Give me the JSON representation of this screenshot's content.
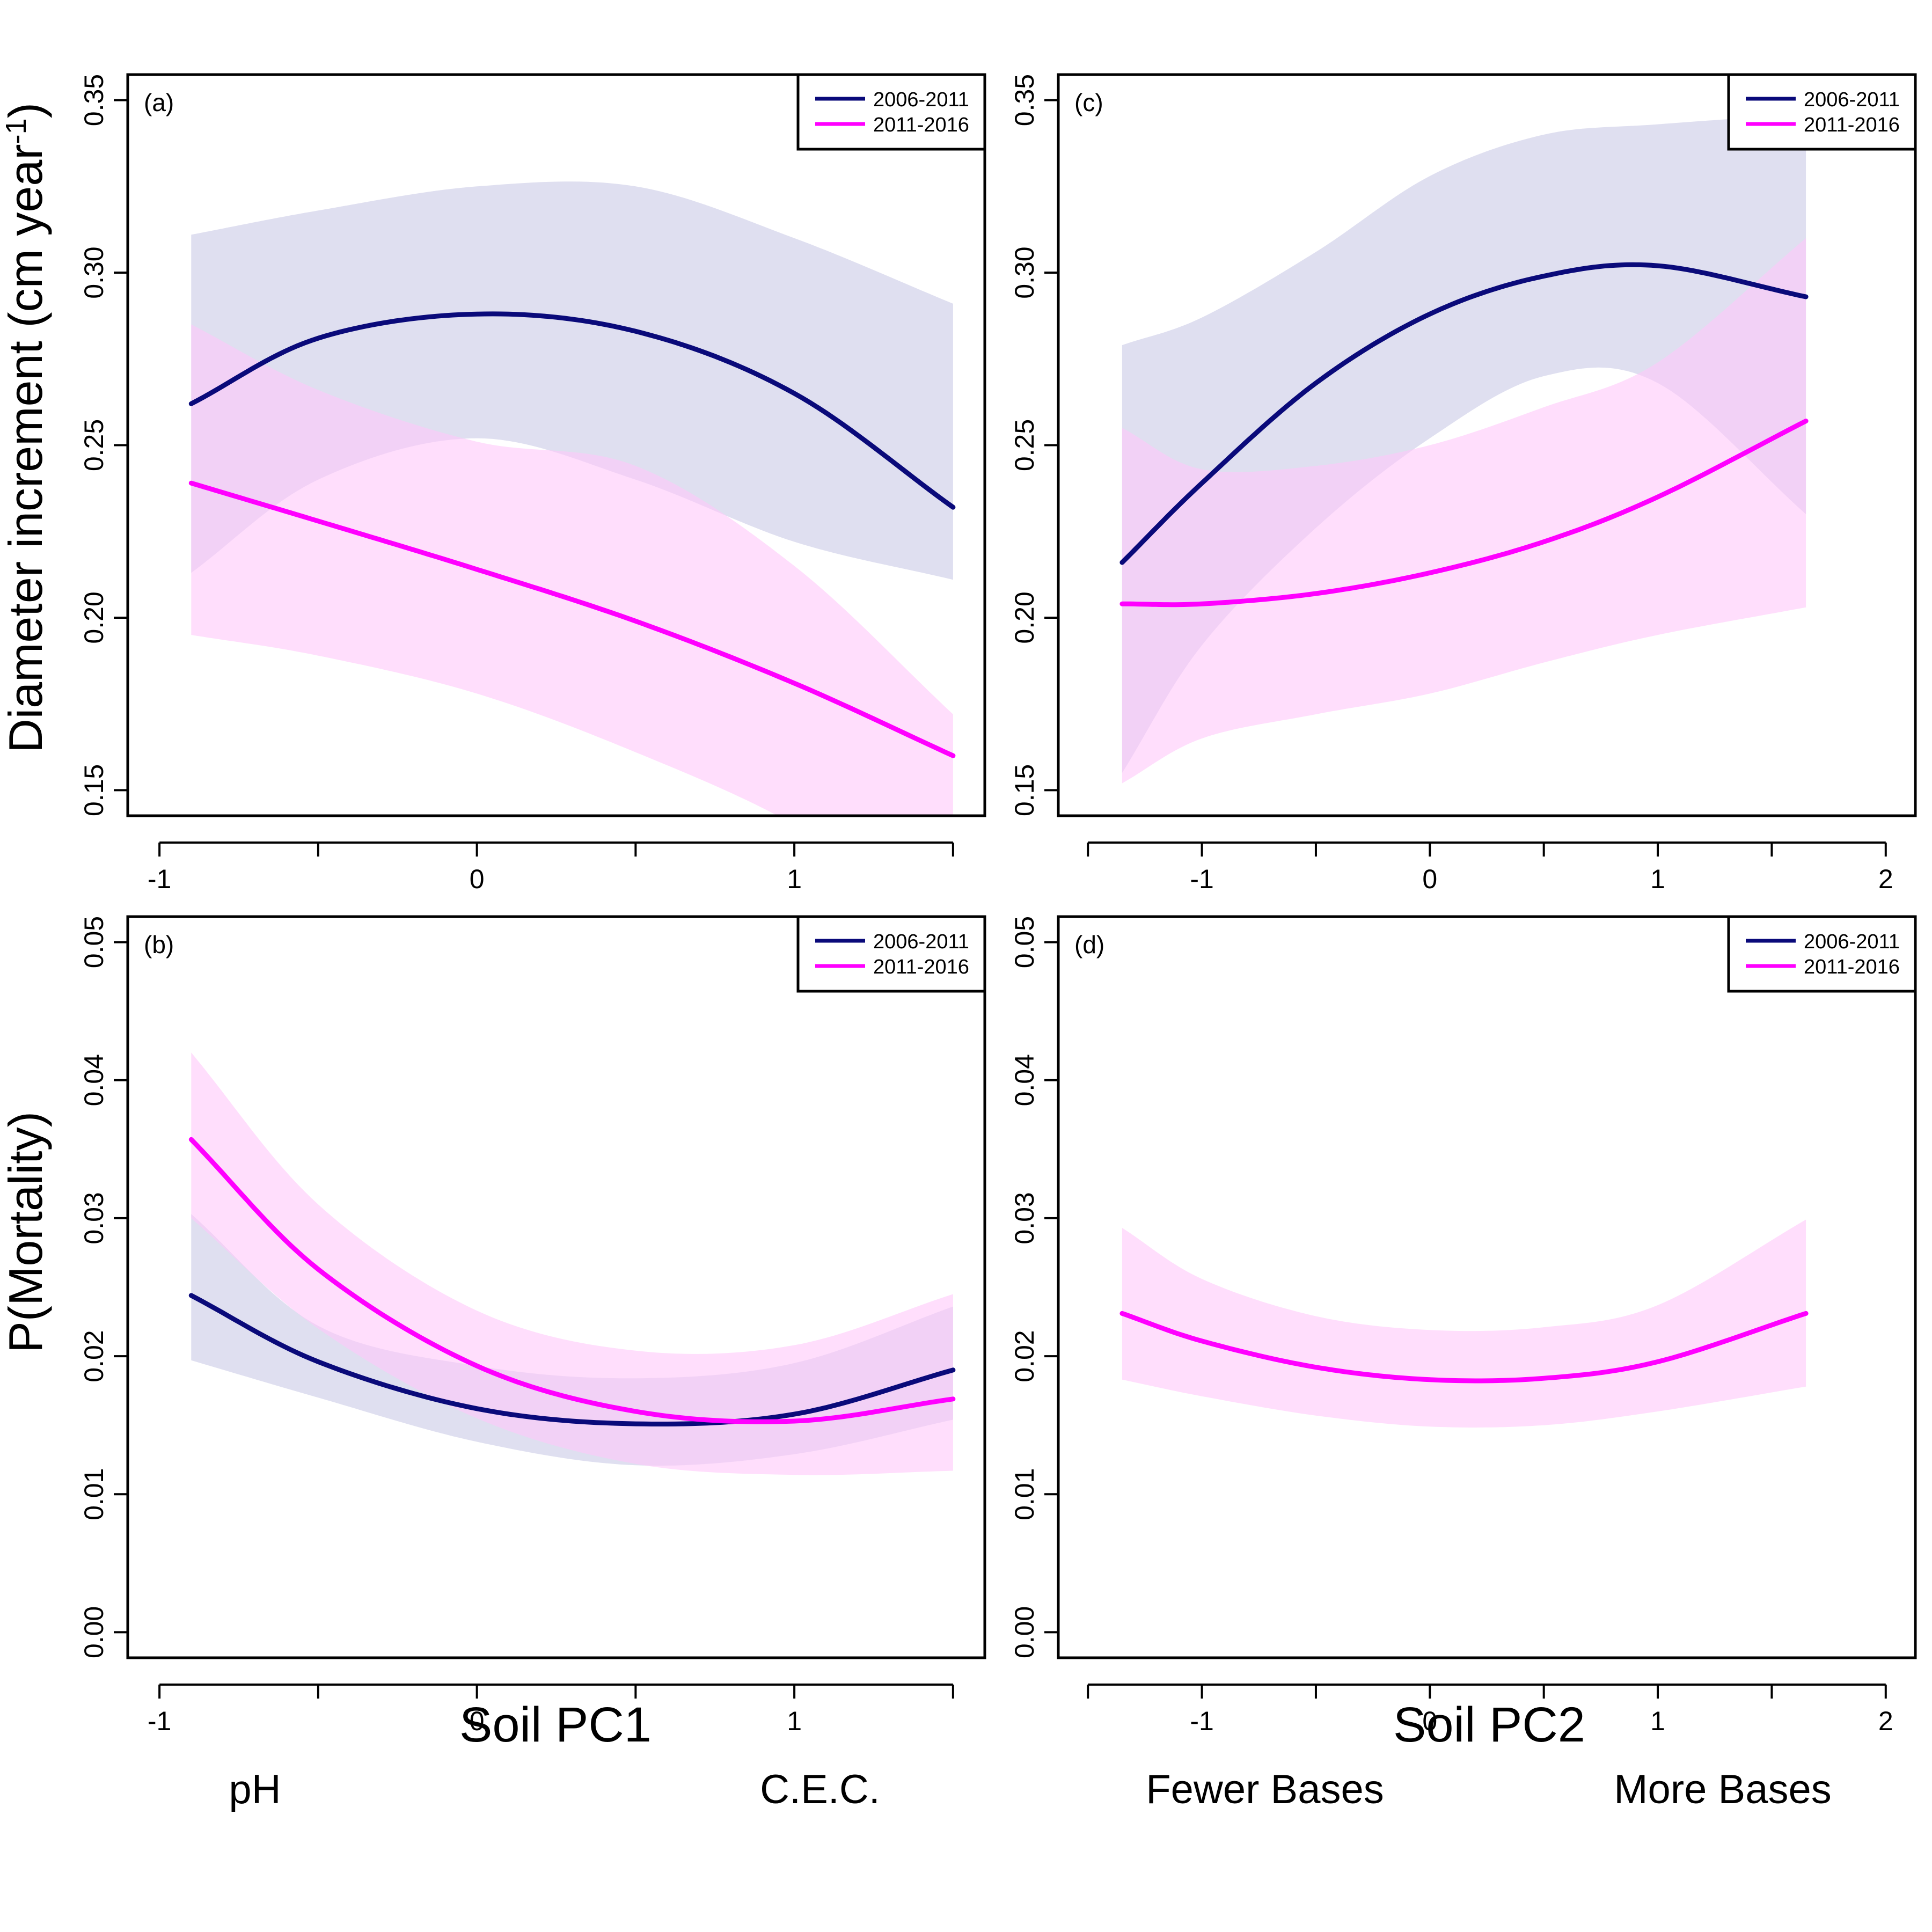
{
  "figure": {
    "ylabel_growth": "Diameter increment (cm year",
    "ylabel_growth_exp": "-1",
    "ylabel_growth_close": ")",
    "ylabel_mortality": "P(Mortality)",
    "xlabel_pc1": "Soil PC1",
    "xlabel_pc2": "Soil PC2",
    "pc1_low": "pH",
    "pc1_high": "C.E.C.",
    "pc2_low": "Fewer Bases",
    "pc2_high": "More Bases"
  },
  "colors": {
    "2006-2011": "#0a0a7a",
    "2011-2016": "#ff00ff",
    "band_2006-2011": "#d2d2ea",
    "band_2011-2016": "#ffc8fa"
  },
  "chart_data": [
    {
      "panel": "(a)",
      "type": "line",
      "xlim": [
        -1,
        1.5
      ],
      "ylim": [
        0.15,
        0.35
      ],
      "xticks": [
        -1,
        -0.5,
        0,
        0.5,
        1,
        1.5
      ],
      "xtick_labels": [
        "-1",
        "",
        "0",
        "",
        "1",
        ""
      ],
      "yticks": [
        0.15,
        0.2,
        0.25,
        0.3,
        0.35
      ],
      "ytick_labels": [
        "0.15",
        "0.20",
        "0.25",
        "0.30",
        "0.35"
      ],
      "legend": [
        "2006-2011",
        "2011-2016"
      ],
      "legend_position": "top-right",
      "series": [
        {
          "name": "2006-2011",
          "x": [
            -0.9,
            -0.5,
            0,
            0.5,
            1,
            1.5
          ],
          "y": [
            0.262,
            0.281,
            0.288,
            0.283,
            0.265,
            0.232
          ],
          "lower": [
            0.213,
            0.24,
            0.252,
            0.24,
            0.222,
            0.211
          ],
          "upper": [
            0.311,
            0.318,
            0.325,
            0.325,
            0.31,
            0.291
          ]
        },
        {
          "name": "2011-2016",
          "x": [
            -0.9,
            -0.5,
            0,
            0.5,
            1,
            1.5
          ],
          "y": [
            0.239,
            0.228,
            0.214,
            0.199,
            0.181,
            0.16
          ],
          "lower": [
            0.195,
            0.189,
            0.178,
            0.161,
            0.14,
            0.11
          ],
          "upper": [
            0.285,
            0.266,
            0.251,
            0.244,
            0.215,
            0.172
          ]
        }
      ]
    },
    {
      "panel": "(c)",
      "type": "line",
      "xlim": [
        -1.5,
        2
      ],
      "ylim": [
        0.15,
        0.35
      ],
      "xticks": [
        -1.5,
        -1,
        -0.5,
        0,
        0.5,
        1,
        1.5,
        2
      ],
      "xtick_labels": [
        "",
        "-1",
        "",
        "0",
        "",
        "1",
        "",
        "2"
      ],
      "yticks": [
        0.15,
        0.2,
        0.25,
        0.3,
        0.35
      ],
      "ytick_labels": [
        "0.15",
        "0.20",
        "0.25",
        "0.30",
        "0.35"
      ],
      "legend": [
        "2006-2011",
        "2011-2016"
      ],
      "legend_position": "top-right",
      "series": [
        {
          "name": "2006-2011",
          "x": [
            -1.35,
            -1,
            -0.5,
            0,
            0.5,
            1,
            1.65
          ],
          "y": [
            0.216,
            0.239,
            0.268,
            0.288,
            0.299,
            0.302,
            0.293
          ],
          "lower": [
            0.155,
            0.192,
            0.226,
            0.252,
            0.27,
            0.268,
            0.23
          ],
          "upper": [
            0.279,
            0.287,
            0.306,
            0.328,
            0.34,
            0.343,
            0.346
          ]
        },
        {
          "name": "2011-2016",
          "x": [
            -1.35,
            -1,
            -0.5,
            0,
            0.5,
            1,
            1.65
          ],
          "y": [
            0.204,
            0.204,
            0.207,
            0.213,
            0.222,
            0.235,
            0.257
          ],
          "lower": [
            0.152,
            0.165,
            0.172,
            0.178,
            0.187,
            0.195,
            0.203
          ],
          "upper": [
            0.255,
            0.243,
            0.244,
            0.25,
            0.261,
            0.274,
            0.31
          ]
        }
      ]
    },
    {
      "panel": "(b)",
      "type": "line",
      "xlim": [
        -1,
        1.5
      ],
      "ylim": [
        0,
        0.05
      ],
      "xticks": [
        -1,
        -0.5,
        0,
        0.5,
        1,
        1.5
      ],
      "xtick_labels": [
        "-1",
        "",
        "0",
        "",
        "1",
        ""
      ],
      "yticks": [
        0.0,
        0.01,
        0.02,
        0.03,
        0.04,
        0.05
      ],
      "ytick_labels": [
        "0.00",
        "0.01",
        "0.02",
        "0.03",
        "0.04",
        "0.05"
      ],
      "legend": [
        "2006-2011",
        "2011-2016"
      ],
      "legend_position": "top-right",
      "series": [
        {
          "name": "2006-2011",
          "x": [
            -0.9,
            -0.5,
            0,
            0.5,
            1,
            1.5
          ],
          "y": [
            0.0244,
            0.0196,
            0.0162,
            0.0151,
            0.0158,
            0.019
          ],
          "lower": [
            0.0197,
            0.017,
            0.0138,
            0.0121,
            0.0129,
            0.0154
          ],
          "upper": [
            0.0303,
            0.0222,
            0.0193,
            0.0184,
            0.0195,
            0.0236
          ]
        },
        {
          "name": "2011-2016",
          "x": [
            -0.9,
            -0.5,
            0,
            0.5,
            1,
            1.5
          ],
          "y": [
            0.0357,
            0.0263,
            0.0193,
            0.016,
            0.0153,
            0.0169
          ],
          "lower": [
            0.03,
            0.022,
            0.0155,
            0.0122,
            0.0114,
            0.0117
          ],
          "upper": [
            0.042,
            0.031,
            0.0233,
            0.0204,
            0.0208,
            0.0245
          ]
        }
      ]
    },
    {
      "panel": "(d)",
      "type": "line",
      "xlim": [
        -1.5,
        2
      ],
      "ylim": [
        0,
        0.05
      ],
      "xticks": [
        -1.5,
        -1,
        -0.5,
        0,
        0.5,
        1,
        1.5,
        2
      ],
      "xtick_labels": [
        "",
        "-1",
        "",
        "0",
        "",
        "1",
        "",
        "2"
      ],
      "yticks": [
        0.0,
        0.01,
        0.02,
        0.03,
        0.04,
        0.05
      ],
      "ytick_labels": [
        "0.00",
        "0.01",
        "0.02",
        "0.03",
        "0.04",
        "0.05"
      ],
      "legend": [
        "2006-2011",
        "2011-2016"
      ],
      "legend_position": "top-right",
      "series": [
        {
          "name": "2011-2016",
          "x": [
            -1.35,
            -1,
            -0.5,
            0,
            0.5,
            1,
            1.65
          ],
          "y": [
            0.0231,
            0.0211,
            0.0192,
            0.0183,
            0.0184,
            0.0196,
            0.0231
          ],
          "lower": [
            0.0183,
            0.0171,
            0.0157,
            0.0149,
            0.015,
            0.016,
            0.0178
          ],
          "upper": [
            0.0293,
            0.0256,
            0.0229,
            0.0219,
            0.0221,
            0.0237,
            0.0299
          ]
        }
      ]
    }
  ]
}
